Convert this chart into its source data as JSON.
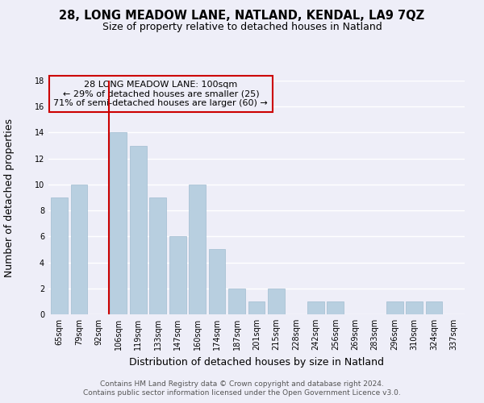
{
  "title": "28, LONG MEADOW LANE, NATLAND, KENDAL, LA9 7QZ",
  "subtitle": "Size of property relative to detached houses in Natland",
  "xlabel": "Distribution of detached houses by size in Natland",
  "ylabel": "Number of detached properties",
  "categories": [
    "65sqm",
    "79sqm",
    "92sqm",
    "106sqm",
    "119sqm",
    "133sqm",
    "147sqm",
    "160sqm",
    "174sqm",
    "187sqm",
    "201sqm",
    "215sqm",
    "228sqm",
    "242sqm",
    "256sqm",
    "269sqm",
    "283sqm",
    "296sqm",
    "310sqm",
    "324sqm",
    "337sqm"
  ],
  "values": [
    9,
    10,
    0,
    14,
    13,
    9,
    6,
    10,
    5,
    2,
    1,
    2,
    0,
    1,
    1,
    0,
    0,
    1,
    1,
    1,
    0
  ],
  "bar_color": "#b8cfe0",
  "bar_edge_color": "#a0bcd0",
  "highlight_line_color": "#cc0000",
  "annotation_line1": "28 LONG MEADOW LANE: 100sqm",
  "annotation_line2": "← 29% of detached houses are smaller (25)",
  "annotation_line3": "71% of semi-detached houses are larger (60) →",
  "annotation_box_edgecolor": "#cc0000",
  "ylim": [
    0,
    18
  ],
  "yticks": [
    0,
    2,
    4,
    6,
    8,
    10,
    12,
    14,
    16,
    18
  ],
  "footer_line1": "Contains HM Land Registry data © Crown copyright and database right 2024.",
  "footer_line2": "Contains public sector information licensed under the Open Government Licence v3.0.",
  "bg_color": "#eeeef8",
  "plot_bg_color": "#eeeef8",
  "grid_color": "#ffffff",
  "title_fontsize": 10.5,
  "subtitle_fontsize": 9,
  "axis_label_fontsize": 9,
  "tick_fontsize": 7,
  "annotation_fontsize": 8,
  "footer_fontsize": 6.5
}
